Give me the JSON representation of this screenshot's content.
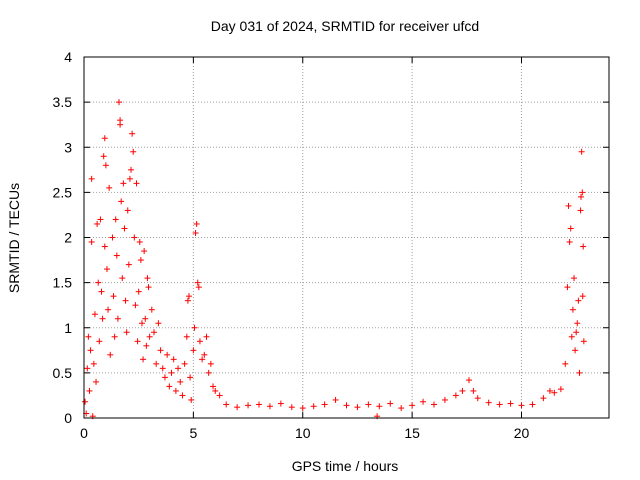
{
  "chart_data": {
    "type": "scatter",
    "title": "Day 031 of 2024, SRMTID for receiver ufcd",
    "xlabel": "GPS time / hours",
    "ylabel": "SRMTID / TECUs",
    "xlim": [
      0,
      24
    ],
    "ylim": [
      0,
      4
    ],
    "xticks": [
      0,
      5,
      10,
      15,
      20
    ],
    "yticks": [
      0,
      0.5,
      1,
      1.5,
      2,
      2.5,
      3,
      3.5,
      4
    ],
    "ytick_labels": [
      "0",
      "0.5",
      "1",
      "1.5",
      "2",
      "2.5",
      "3",
      "3.5",
      "4"
    ],
    "grid": true,
    "marker": "+",
    "color": "#ff0000",
    "series": [
      {
        "name": "SRMTID",
        "points": [
          [
            0.05,
            0.18
          ],
          [
            0.1,
            0.05
          ],
          [
            0.15,
            0.55
          ],
          [
            0.2,
            0.9
          ],
          [
            0.25,
            0.3
          ],
          [
            0.3,
            0.75
          ],
          [
            0.35,
            2.65
          ],
          [
            0.35,
            1.95
          ],
          [
            0.4,
            0.02
          ],
          [
            0.45,
            0.6
          ],
          [
            0.5,
            1.15
          ],
          [
            0.55,
            0.4
          ],
          [
            0.6,
            2.15
          ],
          [
            0.65,
            1.5
          ],
          [
            0.7,
            0.85
          ],
          [
            0.75,
            2.2
          ],
          [
            0.8,
            1.4
          ],
          [
            0.85,
            1.1
          ],
          [
            0.9,
            2.9
          ],
          [
            0.95,
            3.1
          ],
          [
            0.95,
            1.9
          ],
          [
            1.0,
            2.8
          ],
          [
            1.05,
            1.65
          ],
          [
            1.1,
            1.2
          ],
          [
            1.15,
            2.55
          ],
          [
            1.2,
            0.7
          ],
          [
            1.3,
            2.0
          ],
          [
            1.35,
            1.35
          ],
          [
            1.4,
            0.9
          ],
          [
            1.45,
            2.2
          ],
          [
            1.5,
            1.8
          ],
          [
            1.55,
            1.1
          ],
          [
            1.6,
            3.5
          ],
          [
            1.65,
            3.3
          ],
          [
            1.65,
            3.25
          ],
          [
            1.7,
            2.4
          ],
          [
            1.75,
            1.55
          ],
          [
            1.8,
            2.6
          ],
          [
            1.85,
            2.1
          ],
          [
            1.9,
            1.3
          ],
          [
            1.95,
            0.95
          ],
          [
            2.0,
            2.3
          ],
          [
            2.05,
            1.7
          ],
          [
            2.1,
            2.65
          ],
          [
            2.15,
            2.75
          ],
          [
            2.2,
            3.15
          ],
          [
            2.25,
            2.95
          ],
          [
            2.3,
            2.0
          ],
          [
            2.35,
            1.25
          ],
          [
            2.4,
            2.6
          ],
          [
            2.45,
            0.85
          ],
          [
            2.5,
            1.4
          ],
          [
            2.55,
            1.95
          ],
          [
            2.6,
            1.75
          ],
          [
            2.65,
            1.05
          ],
          [
            2.7,
            0.65
          ],
          [
            2.75,
            1.85
          ],
          [
            2.8,
            1.1
          ],
          [
            2.85,
            0.8
          ],
          [
            2.9,
            1.55
          ],
          [
            2.95,
            1.45
          ],
          [
            3.0,
            0.9
          ],
          [
            3.1,
            1.2
          ],
          [
            3.2,
            0.95
          ],
          [
            3.3,
            0.6
          ],
          [
            3.4,
            1.05
          ],
          [
            3.5,
            0.75
          ],
          [
            3.6,
            0.55
          ],
          [
            3.7,
            0.45
          ],
          [
            3.8,
            0.7
          ],
          [
            3.9,
            0.35
          ],
          [
            4.0,
            0.5
          ],
          [
            4.1,
            0.65
          ],
          [
            4.2,
            0.3
          ],
          [
            4.3,
            0.55
          ],
          [
            4.4,
            0.4
          ],
          [
            4.5,
            0.25
          ],
          [
            4.6,
            0.6
          ],
          [
            4.7,
            0.9
          ],
          [
            4.75,
            1.3
          ],
          [
            4.8,
            1.35
          ],
          [
            4.85,
            0.45
          ],
          [
            4.9,
            0.2
          ],
          [
            5.0,
            0.75
          ],
          [
            5.05,
            1.0
          ],
          [
            5.1,
            2.05
          ],
          [
            5.15,
            2.15
          ],
          [
            5.2,
            1.5
          ],
          [
            5.25,
            1.45
          ],
          [
            5.3,
            0.85
          ],
          [
            5.4,
            0.65
          ],
          [
            5.5,
            0.7
          ],
          [
            5.6,
            0.9
          ],
          [
            5.7,
            0.5
          ],
          [
            5.8,
            0.6
          ],
          [
            5.9,
            0.35
          ],
          [
            6.0,
            0.3
          ],
          [
            6.2,
            0.25
          ],
          [
            6.5,
            0.15
          ],
          [
            7.0,
            0.12
          ],
          [
            7.5,
            0.14
          ],
          [
            8.0,
            0.15
          ],
          [
            8.5,
            0.13
          ],
          [
            9.0,
            0.16
          ],
          [
            9.5,
            0.12
          ],
          [
            10.0,
            0.11
          ],
          [
            10.5,
            0.13
          ],
          [
            11.0,
            0.15
          ],
          [
            11.5,
            0.2
          ],
          [
            12.0,
            0.14
          ],
          [
            12.5,
            0.12
          ],
          [
            13.0,
            0.15
          ],
          [
            13.4,
            0.02
          ],
          [
            13.5,
            0.13
          ],
          [
            14.0,
            0.16
          ],
          [
            14.5,
            0.11
          ],
          [
            15.0,
            0.14
          ],
          [
            15.5,
            0.18
          ],
          [
            16.0,
            0.15
          ],
          [
            16.5,
            0.2
          ],
          [
            17.0,
            0.25
          ],
          [
            17.3,
            0.3
          ],
          [
            17.6,
            0.42
          ],
          [
            17.8,
            0.3
          ],
          [
            18.0,
            0.22
          ],
          [
            18.5,
            0.17
          ],
          [
            19.0,
            0.15
          ],
          [
            19.5,
            0.16
          ],
          [
            20.0,
            0.14
          ],
          [
            20.5,
            0.15
          ],
          [
            21.0,
            0.22
          ],
          [
            21.3,
            0.3
          ],
          [
            21.5,
            0.28
          ],
          [
            21.8,
            0.32
          ],
          [
            22.0,
            0.6
          ],
          [
            22.1,
            1.45
          ],
          [
            22.15,
            2.35
          ],
          [
            22.2,
            1.95
          ],
          [
            22.25,
            2.1
          ],
          [
            22.3,
            0.9
          ],
          [
            22.35,
            1.2
          ],
          [
            22.4,
            1.55
          ],
          [
            22.45,
            0.75
          ],
          [
            22.5,
            0.95
          ],
          [
            22.55,
            1.05
          ],
          [
            22.6,
            1.3
          ],
          [
            22.65,
            0.5
          ],
          [
            22.7,
            2.3
          ],
          [
            22.72,
            2.45
          ],
          [
            22.75,
            2.95
          ],
          [
            22.78,
            2.5
          ],
          [
            22.8,
            1.35
          ],
          [
            22.82,
            1.9
          ],
          [
            22.85,
            0.85
          ]
        ]
      }
    ]
  }
}
